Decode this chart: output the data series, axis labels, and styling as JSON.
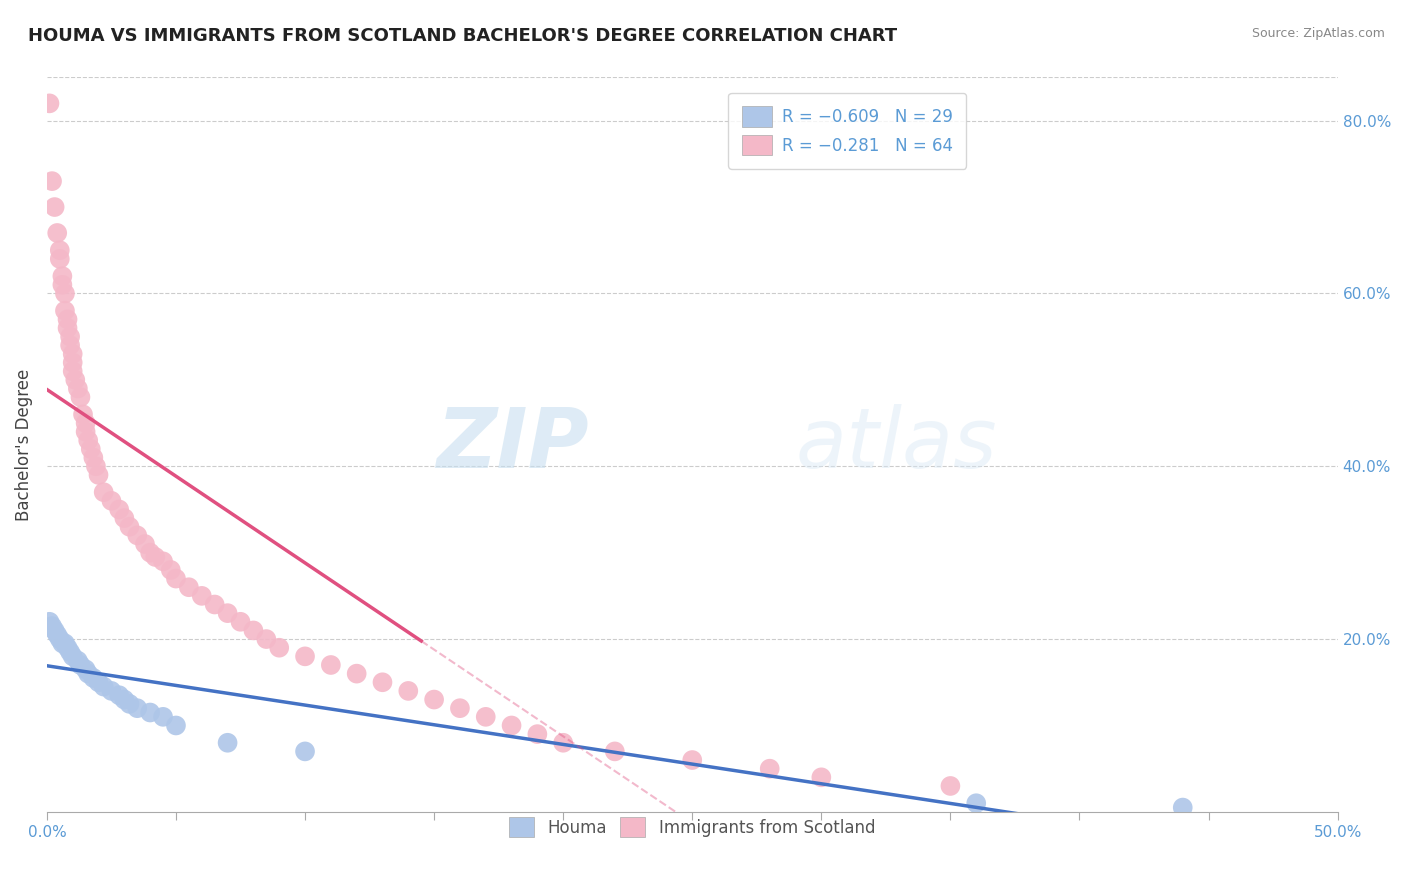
{
  "title": "HOUMA VS IMMIGRANTS FROM SCOTLAND BACHELOR'S DEGREE CORRELATION CHART",
  "source": "Source: ZipAtlas.com",
  "ylabel": "Bachelor's Degree",
  "xlim": [
    0.0,
    0.5
  ],
  "ylim": [
    0.0,
    0.85
  ],
  "y_ticks_right": [
    0.2,
    0.4,
    0.6,
    0.8
  ],
  "y_tick_labels_right": [
    "20.0%",
    "40.0%",
    "60.0%",
    "80.0%"
  ],
  "x_ticks": [
    0.0,
    0.05,
    0.1,
    0.15,
    0.2,
    0.25,
    0.3,
    0.35,
    0.4,
    0.45,
    0.5
  ],
  "x_label_ticks": [
    0.0,
    0.5
  ],
  "x_label_values": [
    "0.0%",
    "50.0%"
  ],
  "watermark_zip": "ZIP",
  "watermark_atlas": "atlas",
  "legend_blue_label": "Houma",
  "legend_pink_label": "Immigrants from Scotland",
  "blue_color": "#aec6e8",
  "pink_color": "#f4b8c8",
  "blue_line_color": "#4472c4",
  "pink_line_color": "#e05080",
  "pink_line_dash": [
    6,
    4
  ],
  "title_fontsize": 13,
  "axis_label_fontsize": 11,
  "tick_fontsize": 11,
  "legend_fontsize": 12,
  "houma_x": [
    0.001,
    0.002,
    0.003,
    0.004,
    0.005,
    0.006,
    0.007,
    0.008,
    0.009,
    0.01,
    0.012,
    0.013,
    0.015,
    0.016,
    0.018,
    0.02,
    0.022,
    0.025,
    0.028,
    0.03,
    0.032,
    0.035,
    0.04,
    0.045,
    0.05,
    0.07,
    0.1,
    0.36,
    0.44
  ],
  "houma_y": [
    0.22,
    0.215,
    0.21,
    0.205,
    0.2,
    0.195,
    0.195,
    0.19,
    0.185,
    0.18,
    0.175,
    0.17,
    0.165,
    0.16,
    0.155,
    0.15,
    0.145,
    0.14,
    0.135,
    0.13,
    0.125,
    0.12,
    0.115,
    0.11,
    0.1,
    0.08,
    0.07,
    0.01,
    0.005
  ],
  "scotland_x": [
    0.001,
    0.002,
    0.003,
    0.004,
    0.005,
    0.005,
    0.006,
    0.006,
    0.007,
    0.007,
    0.008,
    0.008,
    0.009,
    0.009,
    0.01,
    0.01,
    0.01,
    0.011,
    0.012,
    0.013,
    0.014,
    0.015,
    0.015,
    0.016,
    0.017,
    0.018,
    0.019,
    0.02,
    0.022,
    0.025,
    0.028,
    0.03,
    0.032,
    0.035,
    0.038,
    0.04,
    0.042,
    0.045,
    0.048,
    0.05,
    0.055,
    0.06,
    0.065,
    0.07,
    0.075,
    0.08,
    0.085,
    0.09,
    0.1,
    0.11,
    0.12,
    0.13,
    0.14,
    0.15,
    0.16,
    0.17,
    0.18,
    0.19,
    0.2,
    0.22,
    0.25,
    0.28,
    0.3,
    0.35
  ],
  "scotland_y": [
    0.82,
    0.73,
    0.7,
    0.67,
    0.65,
    0.64,
    0.62,
    0.61,
    0.6,
    0.58,
    0.57,
    0.56,
    0.55,
    0.54,
    0.53,
    0.52,
    0.51,
    0.5,
    0.49,
    0.48,
    0.46,
    0.45,
    0.44,
    0.43,
    0.42,
    0.41,
    0.4,
    0.39,
    0.37,
    0.36,
    0.35,
    0.34,
    0.33,
    0.32,
    0.31,
    0.3,
    0.295,
    0.29,
    0.28,
    0.27,
    0.26,
    0.25,
    0.24,
    0.23,
    0.22,
    0.21,
    0.2,
    0.19,
    0.18,
    0.17,
    0.16,
    0.15,
    0.14,
    0.13,
    0.12,
    0.11,
    0.1,
    0.09,
    0.08,
    0.07,
    0.06,
    0.05,
    0.04,
    0.03
  ]
}
